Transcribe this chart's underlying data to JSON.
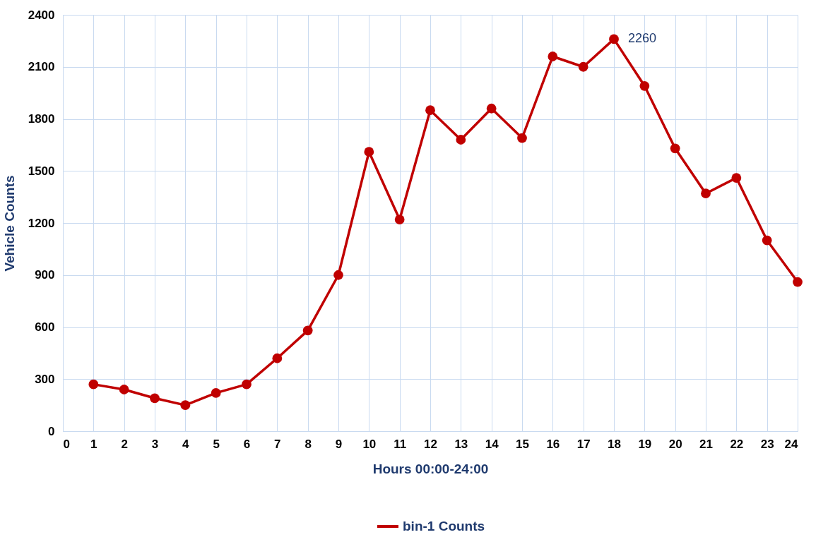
{
  "chart_data": {
    "type": "line",
    "xlabel": "Hours 00:00-24:00",
    "ylabel": "Vehicle Counts",
    "x": [
      1,
      2,
      3,
      4,
      5,
      6,
      7,
      8,
      9,
      10,
      11,
      12,
      13,
      14,
      15,
      16,
      17,
      18,
      19,
      20,
      21,
      22,
      23,
      24
    ],
    "series": [
      {
        "name": "bin-1 Counts",
        "color": "#c00000",
        "values": [
          270,
          240,
          190,
          150,
          220,
          270,
          420,
          580,
          900,
          1610,
          1220,
          1850,
          1680,
          1860,
          1690,
          2160,
          2100,
          2260,
          1990,
          1630,
          1370,
          1460,
          1100,
          860
        ]
      }
    ],
    "xlim": [
      0,
      24
    ],
    "xticks": [
      0,
      1,
      2,
      3,
      4,
      5,
      6,
      7,
      8,
      9,
      10,
      11,
      12,
      13,
      14,
      15,
      16,
      17,
      18,
      19,
      20,
      21,
      22,
      23,
      24
    ],
    "ylim": [
      0,
      2400
    ],
    "yticks": [
      0,
      300,
      600,
      900,
      1200,
      1500,
      1800,
      2100,
      2400
    ],
    "annotations": [
      {
        "text": "2260",
        "x": 18,
        "y": 2260
      }
    ],
    "grid": true,
    "legend": "bottom",
    "marker": "circle",
    "line_style": "solid"
  }
}
